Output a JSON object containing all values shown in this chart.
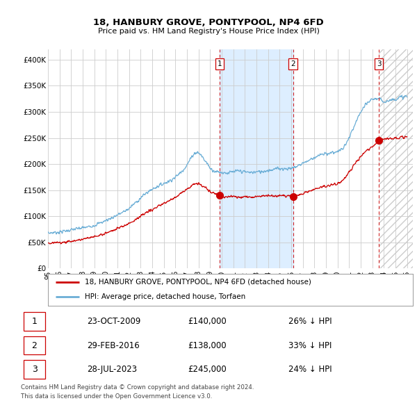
{
  "title": "18, HANBURY GROVE, PONTYPOOL, NP4 6FD",
  "subtitle": "Price paid vs. HM Land Registry's House Price Index (HPI)",
  "ylabel_ticks": [
    "£0",
    "£50K",
    "£100K",
    "£150K",
    "£200K",
    "£250K",
    "£300K",
    "£350K",
    "£400K"
  ],
  "ytick_values": [
    0,
    50000,
    100000,
    150000,
    200000,
    250000,
    300000,
    350000,
    400000
  ],
  "ylim": [
    0,
    420000
  ],
  "xlim_start": 1995.0,
  "xlim_end": 2026.5,
  "sale_dates": [
    2009.81,
    2016.16,
    2023.56
  ],
  "sale_prices": [
    140000,
    138000,
    245000
  ],
  "sale_labels": [
    "1",
    "2",
    "3"
  ],
  "shaded_region": [
    2009.81,
    2016.16
  ],
  "hatch_region": [
    2023.56,
    2026.5
  ],
  "legend_entries": [
    "18, HANBURY GROVE, PONTYPOOL, NP4 6FD (detached house)",
    "HPI: Average price, detached house, Torfaen"
  ],
  "table_data": [
    [
      "1",
      "23-OCT-2009",
      "£140,000",
      "26% ↓ HPI"
    ],
    [
      "2",
      "29-FEB-2016",
      "£138,000",
      "33% ↓ HPI"
    ],
    [
      "3",
      "28-JUL-2023",
      "£245,000",
      "24% ↓ HPI"
    ]
  ],
  "footer": "Contains HM Land Registry data © Crown copyright and database right 2024.\nThis data is licensed under the Open Government Licence v3.0.",
  "hpi_color": "#6baed6",
  "price_color": "#cc0000",
  "sale_marker_color": "#cc0000",
  "shaded_color": "#ddeeff",
  "hatch_color": "#e8e8e8",
  "dashed_line_color": "#cc0000",
  "background_color": "#ffffff",
  "grid_color": "#cccccc"
}
